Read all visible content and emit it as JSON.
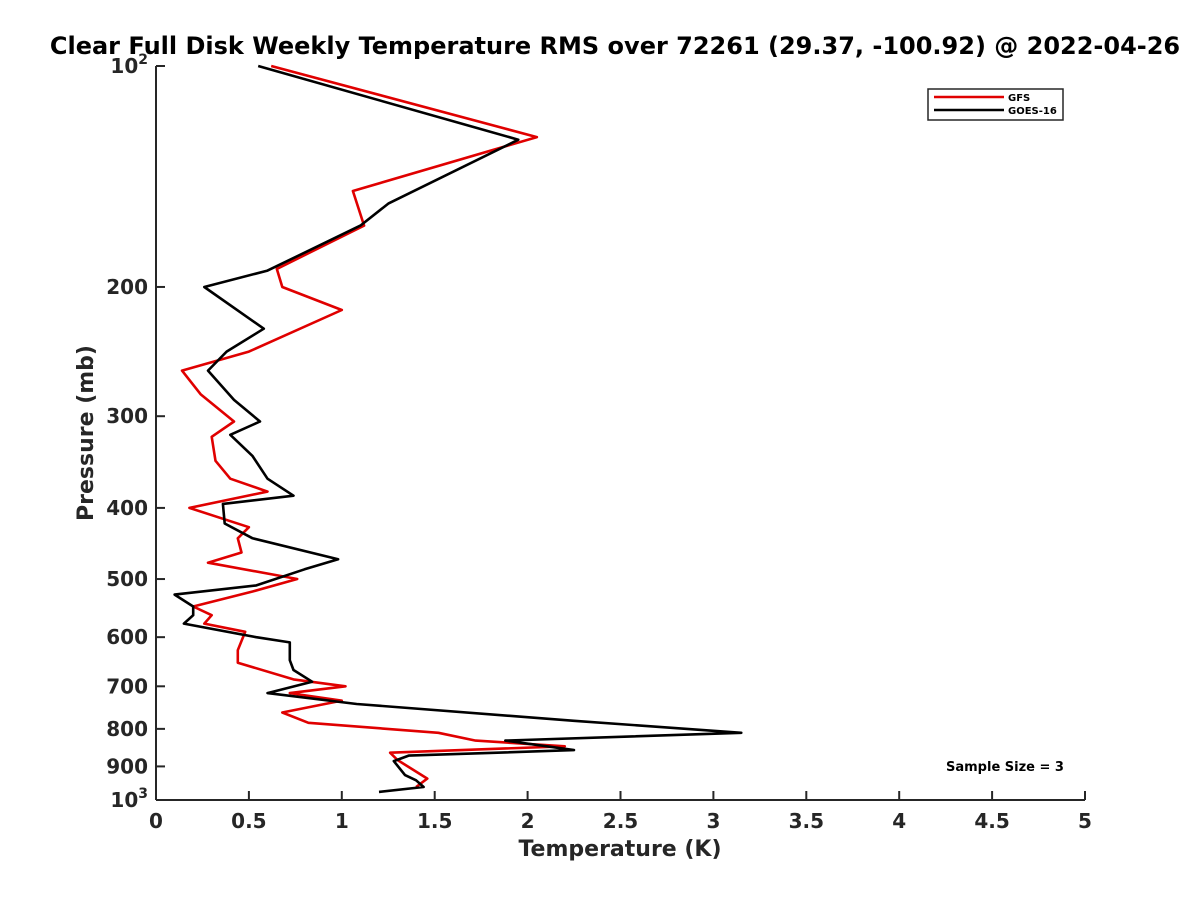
{
  "chart_data": {
    "type": "line",
    "title": "Clear Full Disk Weekly Temperature RMS over 72261 (29.37, -100.92) @ 2022-04-26",
    "xlabel": "Temperature (K)",
    "ylabel": "Pressure (mb)",
    "xlim": [
      0,
      5
    ],
    "ylim": [
      100,
      1000
    ],
    "y_scale": "log",
    "y_reversed": true,
    "grid": false,
    "legend_position": "top-right",
    "x_ticks": [
      "0",
      "0.5",
      "1",
      "1.5",
      "2",
      "2.5",
      "3",
      "3.5",
      "4",
      "4.5",
      "5"
    ],
    "y_ticks": [
      {
        "value": 100,
        "base": "10",
        "exp": "2"
      },
      {
        "value": 200,
        "label": "200"
      },
      {
        "value": 300,
        "label": "300"
      },
      {
        "value": 400,
        "label": "400"
      },
      {
        "value": 500,
        "label": "500"
      },
      {
        "value": 600,
        "label": "600"
      },
      {
        "value": 700,
        "label": "700"
      },
      {
        "value": 800,
        "label": "800"
      },
      {
        "value": 900,
        "label": "900"
      },
      {
        "value": 1000,
        "base": "10",
        "exp": "3"
      }
    ],
    "series": [
      {
        "name": "GFS",
        "color": "#e00000",
        "points": [
          [
            0.62,
            100
          ],
          [
            2.05,
            125
          ],
          [
            1.06,
            148
          ],
          [
            1.12,
            165
          ],
          [
            0.65,
            189
          ],
          [
            0.68,
            200
          ],
          [
            1.0,
            215
          ],
          [
            0.5,
            245
          ],
          [
            0.14,
            260
          ],
          [
            0.24,
            280
          ],
          [
            0.42,
            305
          ],
          [
            0.3,
            320
          ],
          [
            0.32,
            345
          ],
          [
            0.4,
            365
          ],
          [
            0.6,
            380
          ],
          [
            0.18,
            400
          ],
          [
            0.5,
            425
          ],
          [
            0.44,
            440
          ],
          [
            0.46,
            460
          ],
          [
            0.28,
            475
          ],
          [
            0.76,
            500
          ],
          [
            0.52,
            520
          ],
          [
            0.2,
            545
          ],
          [
            0.3,
            560
          ],
          [
            0.26,
            575
          ],
          [
            0.48,
            590
          ],
          [
            0.44,
            625
          ],
          [
            0.44,
            650
          ],
          [
            0.74,
            685
          ],
          [
            1.02,
            700
          ],
          [
            0.72,
            715
          ],
          [
            1.0,
            732
          ],
          [
            0.68,
            760
          ],
          [
            0.82,
            785
          ],
          [
            1.52,
            810
          ],
          [
            1.72,
            830
          ],
          [
            2.2,
            845
          ],
          [
            1.26,
            862
          ],
          [
            1.3,
            882
          ],
          [
            1.46,
            935
          ],
          [
            1.4,
            960
          ]
        ]
      },
      {
        "name": "GOES-16",
        "color": "#000000",
        "points": [
          [
            0.55,
            100
          ],
          [
            1.95,
            126
          ],
          [
            1.25,
            154
          ],
          [
            1.1,
            165
          ],
          [
            0.6,
            190
          ],
          [
            0.26,
            200
          ],
          [
            0.58,
            228
          ],
          [
            0.38,
            245
          ],
          [
            0.28,
            260
          ],
          [
            0.42,
            285
          ],
          [
            0.56,
            305
          ],
          [
            0.4,
            318
          ],
          [
            0.52,
            340
          ],
          [
            0.6,
            365
          ],
          [
            0.74,
            385
          ],
          [
            0.36,
            395
          ],
          [
            0.37,
            420
          ],
          [
            0.52,
            440
          ],
          [
            0.98,
            470
          ],
          [
            0.8,
            485
          ],
          [
            0.54,
            510
          ],
          [
            0.1,
            525
          ],
          [
            0.2,
            545
          ],
          [
            0.2,
            560
          ],
          [
            0.15,
            575
          ],
          [
            0.54,
            600
          ],
          [
            0.72,
            610
          ],
          [
            0.72,
            645
          ],
          [
            0.74,
            665
          ],
          [
            0.84,
            690
          ],
          [
            0.6,
            715
          ],
          [
            1.08,
            740
          ],
          [
            2.25,
            780
          ],
          [
            3.15,
            810
          ],
          [
            1.88,
            830
          ],
          [
            2.25,
            855
          ],
          [
            1.36,
            870
          ],
          [
            1.28,
            885
          ],
          [
            1.34,
            925
          ],
          [
            1.4,
            940
          ],
          [
            1.44,
            960
          ],
          [
            1.2,
            975
          ]
        ]
      }
    ],
    "annotations": [
      "Sample Size = 3"
    ]
  }
}
